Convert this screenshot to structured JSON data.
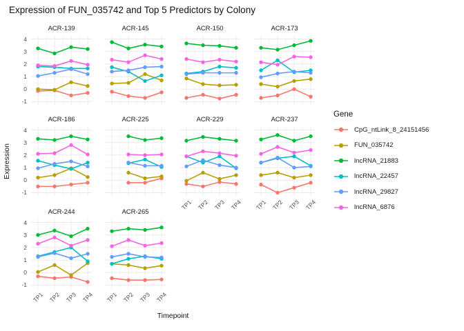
{
  "chart_data": {
    "type": "line",
    "title": "Expression of FUN_035742 and Top 5 Predictors by Colony",
    "xlabel": "Timepoint",
    "ylabel": "Expression",
    "legend_title": "Gene",
    "legend_position": "right",
    "grid": true,
    "x": [
      "TP1",
      "TP2",
      "TP3",
      "TP4"
    ],
    "yticks": [
      4,
      3,
      2,
      1,
      0,
      -1
    ],
    "ylim": [
      -1.25,
      4.25
    ],
    "series": [
      {
        "name": "CpG_ntLink_8_24151456",
        "color": "#F8766D"
      },
      {
        "name": "FUN_035742",
        "color": "#B79F00"
      },
      {
        "name": "lncRNA_21883",
        "color": "#00BA38"
      },
      {
        "name": "lncRNA_22457",
        "color": "#00BFC4"
      },
      {
        "name": "lncRNA_29827",
        "color": "#619CFF"
      },
      {
        "name": "lncRNA_6876",
        "color": "#F564E2"
      }
    ],
    "facets": [
      {
        "name": "ACR-139",
        "values": [
          [
            -0.15,
            -0.1,
            -0.5,
            -0.3
          ],
          [
            0.0,
            -0.05,
            0.55,
            0.25
          ],
          [
            3.25,
            2.85,
            3.35,
            3.2
          ],
          [
            1.8,
            1.75,
            1.65,
            1.65
          ],
          [
            1.05,
            1.3,
            1.6,
            1.2
          ],
          [
            1.9,
            1.85,
            2.25,
            1.95
          ]
        ]
      },
      {
        "name": "ACR-145",
        "values": [
          [
            -0.2,
            -0.55,
            -0.7,
            -0.25
          ],
          [
            0.45,
            0.5,
            1.2,
            0.7
          ],
          [
            3.75,
            3.25,
            3.55,
            3.4
          ],
          [
            1.75,
            1.4,
            0.65,
            1.1
          ],
          [
            1.4,
            1.5,
            1.75,
            1.8
          ],
          [
            2.35,
            2.15,
            2.7,
            2.4
          ]
        ]
      },
      {
        "name": "ACR-150",
        "values": [
          [
            -0.7,
            -0.45,
            -0.75,
            -0.45
          ],
          [
            0.85,
            0.4,
            0.3,
            0.35
          ],
          [
            3.65,
            3.5,
            3.45,
            3.3
          ],
          [
            1.25,
            1.4,
            1.8,
            1.7
          ],
          [
            1.2,
            1.3,
            1.3,
            1.3
          ],
          [
            2.4,
            2.15,
            2.35,
            2.2
          ]
        ]
      },
      {
        "name": "ACR-173",
        "values": [
          [
            -0.7,
            -0.5,
            0.0,
            -0.6
          ],
          [
            0.4,
            0.2,
            0.65,
            0.8
          ],
          [
            3.3,
            3.15,
            3.5,
            3.85
          ],
          [
            1.5,
            2.3,
            1.35,
            1.5
          ],
          [
            0.95,
            1.25,
            1.4,
            1.3
          ],
          [
            2.15,
            1.95,
            2.6,
            2.55
          ]
        ]
      },
      {
        "name": "ACR-186",
        "values": [
          [
            -0.5,
            -0.5,
            -0.35,
            -0.2
          ],
          [
            0.2,
            0.4,
            0.95,
            0.25
          ],
          [
            3.3,
            3.2,
            3.5,
            3.25
          ],
          [
            1.55,
            1.2,
            0.9,
            1.4
          ],
          [
            0.95,
            1.3,
            1.5,
            1.1
          ],
          [
            2.1,
            2.15,
            2.8,
            2.05
          ]
        ]
      },
      {
        "name": "ACR-225",
        "values": [
          [
            null,
            -0.2,
            -0.2,
            0.15
          ],
          [
            null,
            0.6,
            0.15,
            0.3
          ],
          [
            null,
            3.5,
            3.2,
            3.35
          ],
          [
            null,
            1.35,
            1.65,
            1.05
          ],
          [
            null,
            1.4,
            1.15,
            1.15
          ],
          [
            null,
            2.05,
            2.0,
            2.05
          ]
        ]
      },
      {
        "name": "ACR-229",
        "values": [
          [
            -0.3,
            -0.5,
            -0.15,
            -0.3
          ],
          [
            -0.05,
            0.6,
            0.1,
            0.4
          ],
          [
            3.15,
            3.45,
            3.3,
            3.15
          ],
          [
            1.9,
            1.4,
            1.9,
            0.95
          ],
          [
            1.1,
            1.6,
            1.2,
            1.0
          ],
          [
            1.9,
            2.3,
            2.15,
            1.95
          ]
        ]
      },
      {
        "name": "ACR-237",
        "values": [
          [
            -0.35,
            -1.0,
            -0.6,
            -0.2
          ],
          [
            0.4,
            0.6,
            0.2,
            0.4
          ],
          [
            3.25,
            3.6,
            3.15,
            3.5
          ],
          [
            1.4,
            1.75,
            1.9,
            1.15
          ],
          [
            1.4,
            1.8,
            1.0,
            1.1
          ],
          [
            2.1,
            2.65,
            2.2,
            2.4
          ]
        ]
      },
      {
        "name": "ACR-244",
        "values": [
          [
            -0.3,
            -0.45,
            -0.35,
            -0.75
          ],
          [
            0.05,
            0.6,
            -0.2,
            0.75
          ],
          [
            3.0,
            3.35,
            2.9,
            3.5
          ],
          [
            1.3,
            1.65,
            2.0,
            0.9
          ],
          [
            1.25,
            1.55,
            1.15,
            1.5
          ],
          [
            2.3,
            2.8,
            2.15,
            2.6
          ]
        ]
      },
      {
        "name": "ACR-265",
        "values": [
          [
            -0.45,
            -0.6,
            -0.6,
            -0.55
          ],
          [
            0.7,
            0.6,
            0.35,
            0.55
          ],
          [
            3.3,
            3.5,
            3.4,
            3.6
          ],
          [
            0.7,
            1.1,
            1.3,
            1.1
          ],
          [
            1.25,
            1.5,
            1.25,
            1.2
          ],
          [
            2.1,
            2.6,
            2.15,
            2.35
          ]
        ]
      }
    ]
  }
}
